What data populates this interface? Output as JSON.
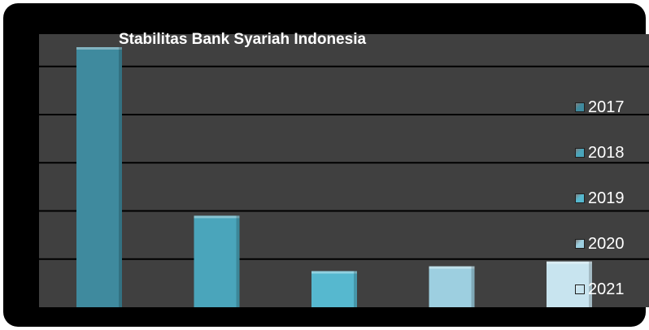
{
  "chart_data": {
    "type": "bar",
    "title": "Stabilitas Bank Syariah Indonesia",
    "categories": [
      "2017",
      "2018",
      "2019",
      "2020",
      "2021"
    ],
    "values": [
      5.4,
      1.9,
      0.75,
      0.85,
      0.95
    ],
    "ylim": [
      0,
      5.67
    ],
    "grid": true,
    "legend_position": "right",
    "series": [
      {
        "name": "2017",
        "color": "#3f8a9e"
      },
      {
        "name": "2018",
        "color": "#4aa5bb"
      },
      {
        "name": "2019",
        "color": "#56b8cf"
      },
      {
        "name": "2020",
        "color": "#9dcfe0"
      },
      {
        "name": "2021",
        "color": "#c8e4ef"
      }
    ]
  }
}
